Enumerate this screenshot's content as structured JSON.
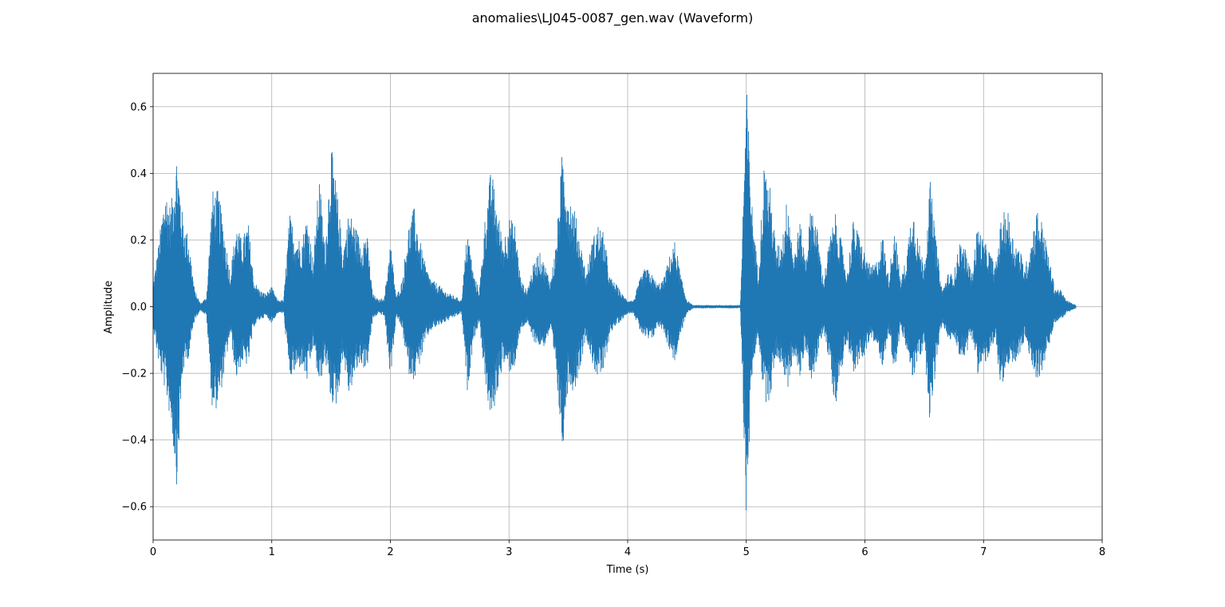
{
  "chart_data": {
    "type": "area",
    "title": "anomalies\\LJ045-0087_gen.wav (Waveform)",
    "xlabel": "Time (s)",
    "ylabel": "Amplitude",
    "xlim": [
      0,
      8
    ],
    "ylim": [
      -0.7,
      0.7
    ],
    "xticks": [
      0,
      1,
      2,
      3,
      4,
      5,
      6,
      7,
      8
    ],
    "xtick_labels": [
      "0",
      "1",
      "2",
      "3",
      "4",
      "5",
      "6",
      "7",
      "8"
    ],
    "yticks": [
      0.6,
      0.4,
      0.2,
      0.0,
      -0.2,
      -0.4,
      -0.6
    ],
    "ytick_labels": [
      "0.6",
      "0.4",
      "0.2",
      "0.0",
      "−0.2",
      "−0.4",
      "−0.6"
    ],
    "grid": true,
    "color": "#1f77b4",
    "series": [
      {
        "x": [
          0.0,
          0.05,
          0.1,
          0.15,
          0.2,
          0.25,
          0.3,
          0.35,
          0.4,
          0.45,
          0.5,
          0.55,
          0.6,
          0.65,
          0.7,
          0.75,
          0.8,
          0.85,
          0.9,
          0.95,
          1.0,
          1.05,
          1.1,
          1.15,
          1.2,
          1.25,
          1.3,
          1.35,
          1.4,
          1.45,
          1.5,
          1.55,
          1.6,
          1.65,
          1.7,
          1.75,
          1.8,
          1.85,
          1.9,
          1.95,
          2.0,
          2.05,
          2.1,
          2.15,
          2.2,
          2.25,
          2.3,
          2.35,
          2.4,
          2.45,
          2.5,
          2.55,
          2.6,
          2.65,
          2.7,
          2.75,
          2.8,
          2.85,
          2.9,
          2.95,
          3.0,
          3.05,
          3.1,
          3.15,
          3.2,
          3.25,
          3.3,
          3.35,
          3.4,
          3.45,
          3.5,
          3.55,
          3.6,
          3.65,
          3.7,
          3.75,
          3.8,
          3.85,
          3.9,
          3.95,
          4.0,
          4.05,
          4.1,
          4.15,
          4.2,
          4.25,
          4.3,
          4.35,
          4.4,
          4.45,
          4.5,
          4.55,
          4.6,
          4.65,
          4.7,
          4.75,
          4.8,
          4.85,
          4.9,
          4.95,
          5.0,
          5.05,
          5.1,
          5.15,
          5.2,
          5.25,
          5.3,
          5.35,
          5.4,
          5.45,
          5.5,
          5.55,
          5.6,
          5.65,
          5.7,
          5.75,
          5.8,
          5.85,
          5.9,
          5.95,
          6.0,
          6.05,
          6.1,
          6.15,
          6.2,
          6.25,
          6.3,
          6.35,
          6.4,
          6.45,
          6.5,
          6.55,
          6.6,
          6.65,
          6.7,
          6.75,
          6.8,
          6.85,
          6.9,
          6.95,
          7.0,
          7.05,
          7.1,
          7.15,
          7.2,
          7.25,
          7.3,
          7.35,
          7.4,
          7.45,
          7.5,
          7.55,
          7.6,
          7.65,
          7.7,
          7.75,
          7.78
        ],
        "y_max": [
          0.07,
          0.2,
          0.36,
          0.3,
          0.47,
          0.27,
          0.21,
          0.05,
          0.01,
          0.03,
          0.35,
          0.35,
          0.23,
          0.1,
          0.25,
          0.2,
          0.26,
          0.08,
          0.05,
          0.04,
          0.06,
          0.02,
          0.02,
          0.28,
          0.22,
          0.2,
          0.28,
          0.14,
          0.4,
          0.18,
          0.49,
          0.35,
          0.17,
          0.29,
          0.25,
          0.2,
          0.23,
          0.04,
          0.02,
          0.03,
          0.2,
          0.03,
          0.08,
          0.24,
          0.3,
          0.2,
          0.12,
          0.08,
          0.07,
          0.05,
          0.04,
          0.03,
          0.02,
          0.24,
          0.1,
          0.05,
          0.28,
          0.42,
          0.3,
          0.2,
          0.27,
          0.25,
          0.08,
          0.05,
          0.12,
          0.17,
          0.13,
          0.08,
          0.2,
          0.48,
          0.35,
          0.3,
          0.2,
          0.1,
          0.2,
          0.25,
          0.22,
          0.09,
          0.07,
          0.04,
          0.02,
          0.02,
          0.08,
          0.12,
          0.1,
          0.07,
          0.08,
          0.15,
          0.2,
          0.09,
          0.02,
          0.005,
          0.005,
          0.005,
          0.005,
          0.005,
          0.005,
          0.005,
          0.005,
          0.005,
          0.68,
          0.3,
          0.1,
          0.43,
          0.36,
          0.18,
          0.2,
          0.35,
          0.15,
          0.26,
          0.15,
          0.32,
          0.23,
          0.08,
          0.2,
          0.28,
          0.2,
          0.1,
          0.26,
          0.22,
          0.16,
          0.12,
          0.14,
          0.22,
          0.09,
          0.25,
          0.08,
          0.15,
          0.32,
          0.2,
          0.13,
          0.38,
          0.2,
          0.05,
          0.1,
          0.1,
          0.2,
          0.17,
          0.1,
          0.25,
          0.2,
          0.17,
          0.12,
          0.27,
          0.3,
          0.21,
          0.18,
          0.12,
          0.2,
          0.3,
          0.25,
          0.15,
          0.06,
          0.05,
          0.02,
          0.01,
          0.005
        ],
        "y_min": [
          -0.06,
          -0.18,
          -0.25,
          -0.35,
          -0.54,
          -0.2,
          -0.15,
          -0.04,
          -0.01,
          -0.03,
          -0.32,
          -0.3,
          -0.2,
          -0.08,
          -0.22,
          -0.17,
          -0.18,
          -0.06,
          -0.04,
          -0.03,
          -0.05,
          -0.02,
          -0.02,
          -0.22,
          -0.2,
          -0.18,
          -0.23,
          -0.12,
          -0.25,
          -0.16,
          -0.29,
          -0.3,
          -0.15,
          -0.27,
          -0.21,
          -0.17,
          -0.2,
          -0.04,
          -0.02,
          -0.03,
          -0.22,
          -0.03,
          -0.07,
          -0.2,
          -0.22,
          -0.17,
          -0.1,
          -0.07,
          -0.06,
          -0.05,
          -0.04,
          -0.03,
          -0.02,
          -0.26,
          -0.1,
          -0.05,
          -0.23,
          -0.36,
          -0.26,
          -0.17,
          -0.2,
          -0.18,
          -0.07,
          -0.05,
          -0.1,
          -0.12,
          -0.12,
          -0.07,
          -0.22,
          -0.44,
          -0.23,
          -0.26,
          -0.18,
          -0.09,
          -0.17,
          -0.22,
          -0.2,
          -0.08,
          -0.06,
          -0.04,
          -0.02,
          -0.02,
          -0.07,
          -0.1,
          -0.11,
          -0.06,
          -0.07,
          -0.13,
          -0.17,
          -0.08,
          -0.02,
          -0.005,
          -0.005,
          -0.005,
          -0.005,
          -0.005,
          -0.005,
          -0.005,
          -0.005,
          -0.005,
          -0.64,
          -0.2,
          -0.08,
          -0.29,
          -0.28,
          -0.15,
          -0.18,
          -0.25,
          -0.14,
          -0.22,
          -0.12,
          -0.23,
          -0.16,
          -0.07,
          -0.17,
          -0.3,
          -0.2,
          -0.1,
          -0.2,
          -0.18,
          -0.14,
          -0.1,
          -0.12,
          -0.18,
          -0.08,
          -0.2,
          -0.07,
          -0.13,
          -0.22,
          -0.17,
          -0.12,
          -0.36,
          -0.18,
          -0.05,
          -0.1,
          -0.1,
          -0.15,
          -0.15,
          -0.09,
          -0.2,
          -0.18,
          -0.15,
          -0.11,
          -0.25,
          -0.2,
          -0.18,
          -0.15,
          -0.1,
          -0.17,
          -0.22,
          -0.2,
          -0.12,
          -0.05,
          -0.04,
          -0.02,
          -0.01,
          -0.005
        ]
      }
    ]
  }
}
